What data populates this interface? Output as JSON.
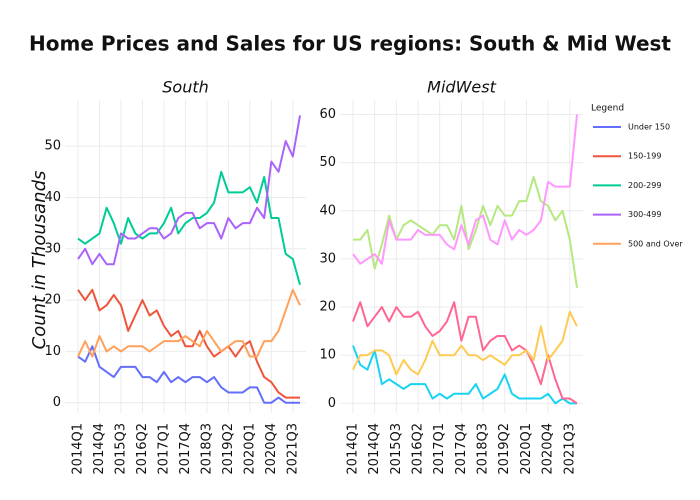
{
  "title": "Home Prices and Sales for US regions: South & Mid West",
  "y_label": "Count in Thousands",
  "legend": {
    "title": "Legend",
    "position": "right"
  },
  "chart_data": [
    {
      "type": "line",
      "title": "South",
      "categories": [
        "2014Q1",
        null,
        null,
        "2014Q4",
        null,
        null,
        "2015Q3",
        null,
        null,
        "2016Q2",
        null,
        null,
        "2017Q1",
        null,
        null,
        "2017Q4",
        null,
        null,
        "2018Q3",
        null,
        null,
        "2019Q2",
        null,
        null,
        "2020Q1",
        null,
        null,
        "2020Q4",
        null,
        null,
        "2021Q3",
        null
      ],
      "ylim": [
        -2,
        59
      ],
      "yticks": [
        0,
        10,
        20,
        30,
        40,
        50
      ],
      "grid": true,
      "series": [
        {
          "name": "Under 150",
          "color": "#636efa",
          "values": [
            9,
            8,
            11,
            7,
            6,
            5,
            7,
            7,
            7,
            5,
            5,
            4,
            6,
            4,
            5,
            4,
            5,
            5,
            4,
            5,
            3,
            2,
            2,
            2,
            3,
            3,
            0,
            0,
            1,
            0,
            0,
            0
          ]
        },
        {
          "name": "150-199",
          "color": "#ef553b",
          "values": [
            22,
            20,
            22,
            18,
            19,
            21,
            19,
            14,
            17,
            20,
            17,
            18,
            15,
            13,
            14,
            11,
            11,
            14,
            11,
            9,
            10,
            11,
            9,
            11,
            12,
            8,
            5,
            4,
            2,
            1,
            1,
            1
          ]
        },
        {
          "name": "200-299",
          "color": "#00cc96",
          "values": [
            32,
            31,
            32,
            33,
            38,
            35,
            31,
            36,
            33,
            32,
            33,
            33,
            35,
            38,
            33,
            35,
            36,
            36,
            37,
            39,
            45,
            41,
            41,
            41,
            42,
            39,
            44,
            36,
            36,
            29,
            28,
            23
          ]
        },
        {
          "name": "300-499",
          "color": "#ab63fa",
          "values": [
            28,
            30,
            27,
            29,
            27,
            27,
            33,
            32,
            32,
            33,
            34,
            34,
            32,
            33,
            36,
            37,
            37,
            34,
            35,
            35,
            32,
            36,
            34,
            35,
            35,
            38,
            36,
            47,
            45,
            51,
            48,
            56
          ]
        },
        {
          "name": "500 and Over",
          "color": "#ffa15a",
          "values": [
            9,
            12,
            9,
            13,
            10,
            11,
            10,
            11,
            11,
            11,
            10,
            11,
            12,
            12,
            12,
            13,
            12,
            11,
            14,
            12,
            10,
            11,
            12,
            12,
            9,
            9,
            12,
            12,
            14,
            18,
            22,
            19
          ]
        }
      ]
    },
    {
      "type": "line",
      "title": "MidWest",
      "categories": [
        "2014Q1",
        null,
        null,
        "2014Q4",
        null,
        null,
        "2015Q3",
        null,
        null,
        "2016Q2",
        null,
        null,
        "2017Q1",
        null,
        null,
        "2017Q4",
        null,
        null,
        "2018Q3",
        null,
        null,
        "2019Q2",
        null,
        null,
        "2020Q1",
        null,
        null,
        "2020Q4",
        null,
        null,
        "2021Q3",
        null
      ],
      "ylim": [
        -2,
        63
      ],
      "yticks": [
        0,
        10,
        20,
        30,
        40,
        50,
        60
      ],
      "grid": true,
      "series": [
        {
          "color": "#19d3f3",
          "values": [
            12,
            8,
            7,
            11,
            4,
            5,
            4,
            3,
            4,
            4,
            4,
            1,
            2,
            1,
            2,
            2,
            2,
            4,
            1,
            2,
            3,
            6,
            2,
            1,
            1,
            1,
            1,
            2,
            0,
            1,
            0,
            0
          ]
        },
        {
          "color": "#ff6692",
          "values": [
            17,
            21,
            16,
            18,
            20,
            17,
            20,
            18,
            18,
            19,
            16,
            14,
            15,
            17,
            21,
            13,
            18,
            18,
            11,
            13,
            14,
            14,
            11,
            12,
            11,
            8,
            4,
            10,
            5,
            1,
            1,
            0
          ]
        },
        {
          "color": "#b6e880",
          "values": [
            34,
            34,
            36,
            28,
            33,
            39,
            34,
            37,
            38,
            37,
            36,
            35,
            37,
            37,
            34,
            41,
            32,
            36,
            41,
            37,
            41,
            39,
            39,
            42,
            42,
            47,
            42,
            41,
            38,
            40,
            34,
            24
          ]
        },
        {
          "color": "#ff97ff",
          "values": [
            31,
            29,
            30,
            31,
            29,
            38,
            34,
            34,
            34,
            36,
            35,
            35,
            35,
            33,
            32,
            37,
            33,
            38,
            39,
            34,
            33,
            38,
            34,
            36,
            35,
            36,
            38,
            46,
            45,
            45,
            45,
            60
          ]
        },
        {
          "color": "#fecb52",
          "values": [
            7,
            10,
            10,
            11,
            11,
            10,
            6,
            9,
            7,
            6,
            9,
            13,
            10,
            10,
            10,
            12,
            10,
            10,
            9,
            10,
            9,
            8,
            10,
            10,
            11,
            9,
            16,
            9,
            11,
            13,
            19,
            16
          ]
        }
      ]
    }
  ]
}
